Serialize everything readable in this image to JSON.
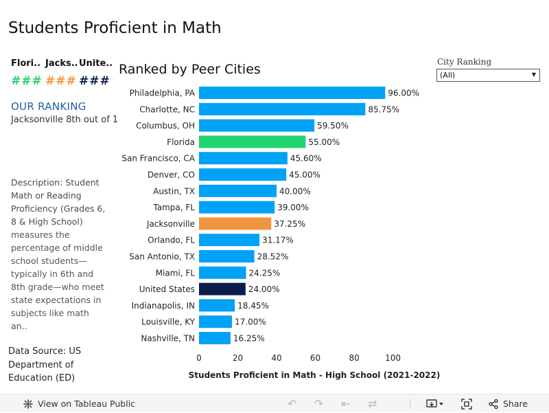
{
  "page": {
    "title": "Students Proficient in Math"
  },
  "kpis": [
    {
      "label": "Flori..",
      "value": "###",
      "color": "#2ecc71"
    },
    {
      "label": "Jacks..",
      "value": "###",
      "color": "#f0953f"
    },
    {
      "label": "Unite..",
      "value": "###",
      "color": "#0c1e4d"
    }
  ],
  "ranking": {
    "heading": "OUR RANKING",
    "heading_color": "#1f5fa8",
    "text": "Jacksonville 8th out of 1"
  },
  "description": {
    "lead": "Description: Student Math or Reading Proficiency (Grades 6, 8 & High School)",
    "body": "measures the percentage of middle school students—typically in 6th and 8th grade—who meet state expectations in subjects like math an.."
  },
  "data_source": "Data Source: US Department of Education (ED)",
  "filter": {
    "label": "City Ranking",
    "value": "(All)"
  },
  "chart_data": {
    "type": "bar",
    "orientation": "horizontal",
    "title": "Ranked by Peer Cities",
    "xlabel": "Students Proficient in Math - High School (2021-2022)",
    "xlim": [
      0,
      100
    ],
    "xticks": [
      0,
      20,
      40,
      60,
      80,
      100
    ],
    "categories": [
      "Philadelphia, PA",
      "Charlotte, NC",
      "Columbus, OH",
      "Florida",
      "San Francisco, CA",
      "Denver, CO",
      "Austin, TX",
      "Tampa, FL",
      "Jacksonville",
      "Orlando, FL",
      "San Antonio, TX",
      "Miami, FL",
      "United States",
      "Indianapolis, IN",
      "Louisville, KY",
      "Nashville, TN"
    ],
    "values": [
      96.0,
      85.75,
      59.5,
      55.0,
      45.6,
      45.0,
      40.0,
      39.0,
      37.25,
      31.17,
      28.52,
      24.25,
      24.0,
      18.45,
      17.0,
      16.25
    ],
    "value_labels": [
      "96.00%",
      "85.75%",
      "59.50%",
      "55.00%",
      "45.60%",
      "45.00%",
      "40.00%",
      "39.00%",
      "37.25%",
      "31.17%",
      "28.52%",
      "24.25%",
      "24.00%",
      "18.45%",
      "17.00%",
      "16.25%"
    ],
    "bar_colors": [
      "#00a2f5",
      "#00a2f5",
      "#00a2f5",
      "#20d46e",
      "#00a2f5",
      "#00a2f5",
      "#00a2f5",
      "#00a2f5",
      "#f0953f",
      "#00a2f5",
      "#00a2f5",
      "#00a2f5",
      "#0a1d4d",
      "#00a2f5",
      "#00a2f5",
      "#00a2f5"
    ],
    "grid": false
  },
  "footer": {
    "view_label": "View on Tableau Public",
    "share_label": "Share"
  }
}
